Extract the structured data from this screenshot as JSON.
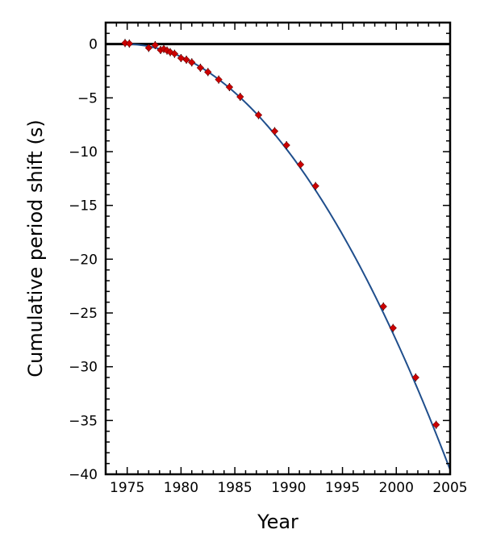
{
  "chart_data": {
    "type": "scatter",
    "title": "",
    "xlabel": "Year",
    "ylabel": "Cumulative period shift (s)",
    "xlim": [
      1973,
      2005
    ],
    "ylim": [
      -40,
      2
    ],
    "grid": false,
    "x_ticks": [
      1975,
      1980,
      1985,
      1990,
      1995,
      2000,
      2005
    ],
    "x_tick_labels": [
      "1975",
      "1980",
      "1985",
      "1990",
      "1995",
      "2000",
      "2005"
    ],
    "y_ticks": [
      0,
      -5,
      -10,
      -15,
      -20,
      -25,
      -30,
      -35,
      -40
    ],
    "y_tick_labels": [
      "0",
      "−5",
      "−10",
      "−15",
      "−20",
      "−25",
      "−30",
      "−35",
      "−40"
    ],
    "zero_line": 0,
    "reference_epoch": 1974.8,
    "points": [
      {
        "x": 1974.8,
        "y": 0.1
      },
      {
        "x": 1975.2,
        "y": 0.05
      },
      {
        "x": 1977.0,
        "y": -0.35
      },
      {
        "x": 1977.6,
        "y": -0.1
      },
      {
        "x": 1978.1,
        "y": -0.55
      },
      {
        "x": 1978.4,
        "y": -0.45
      },
      {
        "x": 1978.7,
        "y": -0.6
      },
      {
        "x": 1979.0,
        "y": -0.75
      },
      {
        "x": 1979.4,
        "y": -0.9
      },
      {
        "x": 1980.0,
        "y": -1.3
      },
      {
        "x": 1980.5,
        "y": -1.45
      },
      {
        "x": 1981.0,
        "y": -1.7
      },
      {
        "x": 1981.8,
        "y": -2.2
      },
      {
        "x": 1982.5,
        "y": -2.6
      },
      {
        "x": 1983.5,
        "y": -3.3
      },
      {
        "x": 1984.5,
        "y": -4.0
      },
      {
        "x": 1985.5,
        "y": -4.9
      },
      {
        "x": 1987.2,
        "y": -6.6
      },
      {
        "x": 1988.7,
        "y": -8.1
      },
      {
        "x": 1989.8,
        "y": -9.4
      },
      {
        "x": 1991.1,
        "y": -11.2
      },
      {
        "x": 1992.5,
        "y": -13.2
      },
      {
        "x": 1998.8,
        "y": -24.4
      },
      {
        "x": 1999.7,
        "y": -26.4
      },
      {
        "x": 2001.8,
        "y": -31.0
      },
      {
        "x": 2003.7,
        "y": -35.4
      }
    ],
    "curve": {
      "type": "parabola",
      "a": -0.0434
    },
    "colors": {
      "points": "#cc0000",
      "curve": "#1f4e8c",
      "zero_line": "#000000"
    }
  }
}
